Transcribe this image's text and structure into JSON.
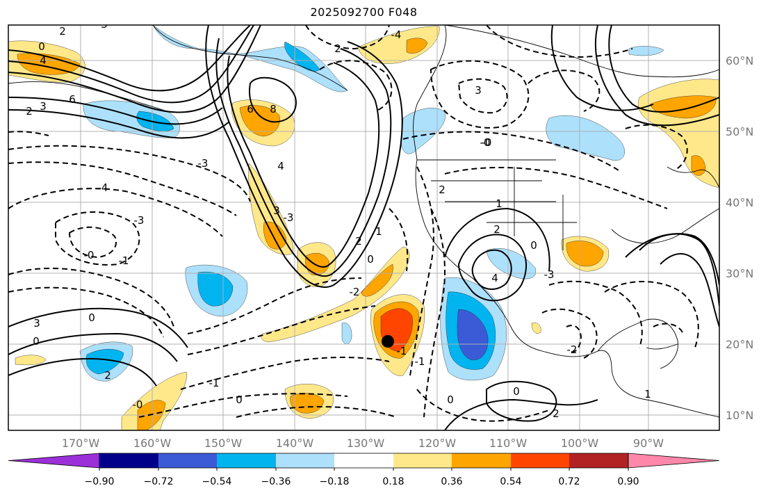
{
  "title": "2025092700 F048",
  "longitude_labels": [
    "170°W",
    "160°W",
    "150°W",
    "140°W",
    "130°W",
    "120°W",
    "110°W",
    "100°W",
    "90°W"
  ],
  "latitude_labels": [
    "60°N",
    "50°N",
    "40°N",
    "30°N",
    "20°N",
    "10°N"
  ],
  "colorbar": {
    "tick_labels": [
      "−0.90",
      "−0.72",
      "−0.54",
      "−0.36",
      "−0.18",
      "0.18",
      "0.36",
      "0.54",
      "0.72",
      "0.90"
    ],
    "colors": [
      "#9b30d9",
      "#00008b",
      "#3b5bd6",
      "#00b4f0",
      "#ade0fb",
      "#ffffff",
      "#ffe88a",
      "#ffa500",
      "#ff4500",
      "#b22222",
      "#ff88aa"
    ]
  },
  "fill_colors": {
    "light_blue": "#ade0fb",
    "blue": "#00b4f0",
    "mid_blue": "#3b5bd6",
    "light_yellow": "#ffe88a",
    "orange": "#ffa500",
    "red": "#ff4500"
  },
  "contour_labels": [
    "0",
    "4",
    "6",
    "3",
    "2",
    "2",
    "3",
    "-4",
    "-3",
    "-0",
    "-1",
    "6",
    "8",
    "4",
    "3",
    "-3",
    "2",
    "-4",
    "-3",
    "1",
    "2",
    "0",
    "-2",
    "3",
    "1",
    "-0",
    "2",
    "-0",
    "2",
    "0",
    "-3",
    "4",
    "3",
    "0",
    "0",
    "2",
    "-1",
    "0",
    "-0",
    "-1",
    "-1",
    "0",
    "0",
    "2",
    "1",
    "-2"
  ],
  "marker": {
    "color": "#000000"
  }
}
